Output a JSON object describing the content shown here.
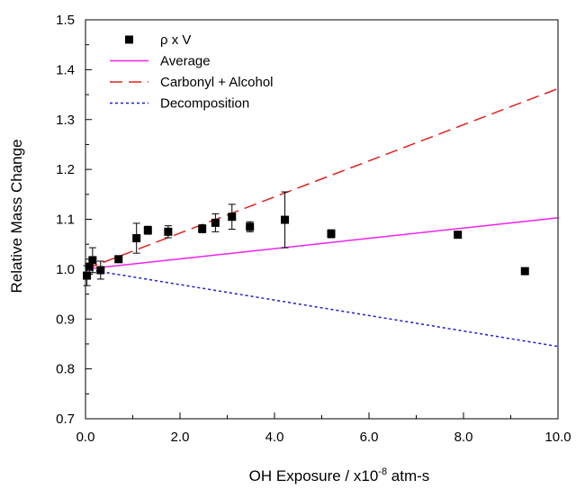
{
  "chart_data": {
    "type": "scatter",
    "title": "",
    "xlabel": "OH Exposure / x10",
    "xlabel_exponent": "-8",
    "xlabel_unit": " atm-s",
    "ylabel": "Relative Mass Change",
    "xlim": [
      0,
      10.0
    ],
    "ylim": [
      0.7,
      1.5
    ],
    "xticks": [
      0.0,
      2.0,
      4.0,
      6.0,
      8.0,
      10.0
    ],
    "xtick_labels": [
      "0.0",
      "2.0",
      "4.0",
      "6.0",
      "8.0",
      "10.0"
    ],
    "yticks": [
      0.7,
      0.8,
      0.9,
      1.0,
      1.1,
      1.2,
      1.3,
      1.4,
      1.5
    ],
    "ytick_labels": [
      "0.7",
      "0.8",
      "0.9",
      "1.0",
      "1.1",
      "1.2",
      "1.3",
      "1.4",
      "1.5"
    ],
    "grid": false,
    "legend_position": "top-left",
    "series": [
      {
        "name": "ρ x V",
        "kind": "scatter",
        "marker": "square",
        "color": "#000000",
        "points": [
          {
            "x": 0.03,
            "y": 0.987,
            "err": 0.02
          },
          {
            "x": 0.08,
            "y": 1.005,
            "err": 0.015
          },
          {
            "x": 0.15,
            "y": 1.018,
            "err": 0.025
          },
          {
            "x": 0.32,
            "y": 0.998,
            "err": 0.018
          },
          {
            "x": 0.7,
            "y": 1.02,
            "err": 0.0
          },
          {
            "x": 1.08,
            "y": 1.062,
            "err": 0.03
          },
          {
            "x": 1.32,
            "y": 1.078,
            "err": 0.008
          },
          {
            "x": 1.75,
            "y": 1.075,
            "err": 0.012
          },
          {
            "x": 2.47,
            "y": 1.081,
            "err": 0.008
          },
          {
            "x": 2.75,
            "y": 1.093,
            "err": 0.018
          },
          {
            "x": 3.1,
            "y": 1.105,
            "err": 0.025
          },
          {
            "x": 3.48,
            "y": 1.085,
            "err": 0.01
          },
          {
            "x": 4.22,
            "y": 1.099,
            "err": 0.056
          },
          {
            "x": 5.2,
            "y": 1.071,
            "err": 0.008
          },
          {
            "x": 7.88,
            "y": 1.069,
            "err": 0.0
          },
          {
            "x": 9.3,
            "y": 0.996,
            "err": 0.0
          }
        ]
      },
      {
        "name": "Average",
        "kind": "line",
        "dash": "solid",
        "color": "#ee22ee",
        "x": [
          0,
          10.0
        ],
        "y": [
          1.0,
          1.103
        ]
      },
      {
        "name": "Carbonyl + Alcohol",
        "kind": "line",
        "dash": "dashed",
        "color": "#e32020",
        "x": [
          0,
          10.0
        ],
        "y": [
          1.0,
          1.362
        ]
      },
      {
        "name": "Decomposition",
        "kind": "line",
        "dash": "dotted",
        "color": "#1c1cd6",
        "x": [
          0,
          10.0
        ],
        "y": [
          1.0,
          0.845
        ]
      }
    ]
  }
}
